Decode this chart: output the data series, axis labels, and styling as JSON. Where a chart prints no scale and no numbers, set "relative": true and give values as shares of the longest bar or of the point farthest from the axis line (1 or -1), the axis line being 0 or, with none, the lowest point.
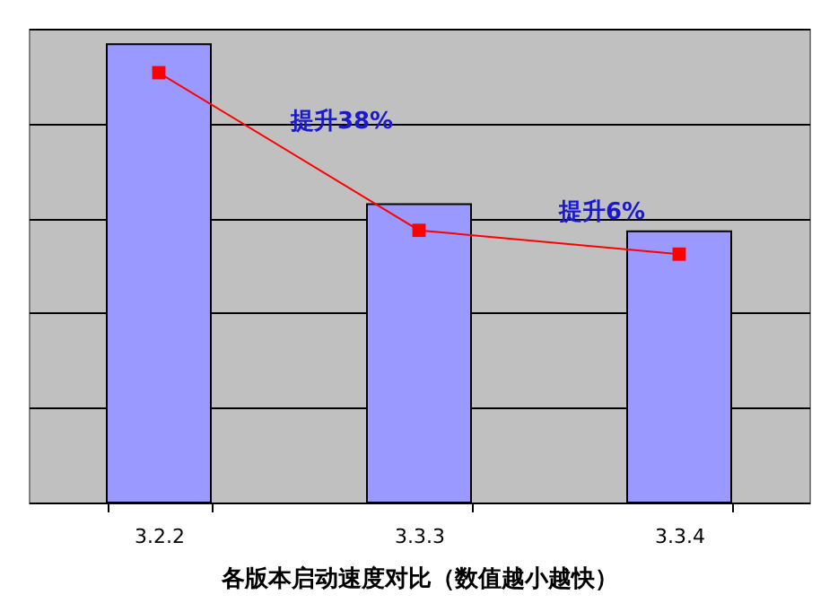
{
  "chart_data": {
    "type": "bar",
    "relative": true,
    "xlabel": "各版本启动速度对比（数值越小越快）",
    "categories": [
      "3.2.2",
      "3.3.3",
      "3.3.4"
    ],
    "series": [
      {
        "color": "#9999ff",
        "values": [
          1,
          0.651,
          0.592
        ]
      },
      {
        "type": "line",
        "color": "#ff0000",
        "marker": "square",
        "line_style": "solid",
        "values": [
          0.938,
          0.594,
          0.542
        ]
      }
    ],
    "annotations": [
      "提升38%",
      "提升6%"
    ],
    "grid": "y"
  }
}
